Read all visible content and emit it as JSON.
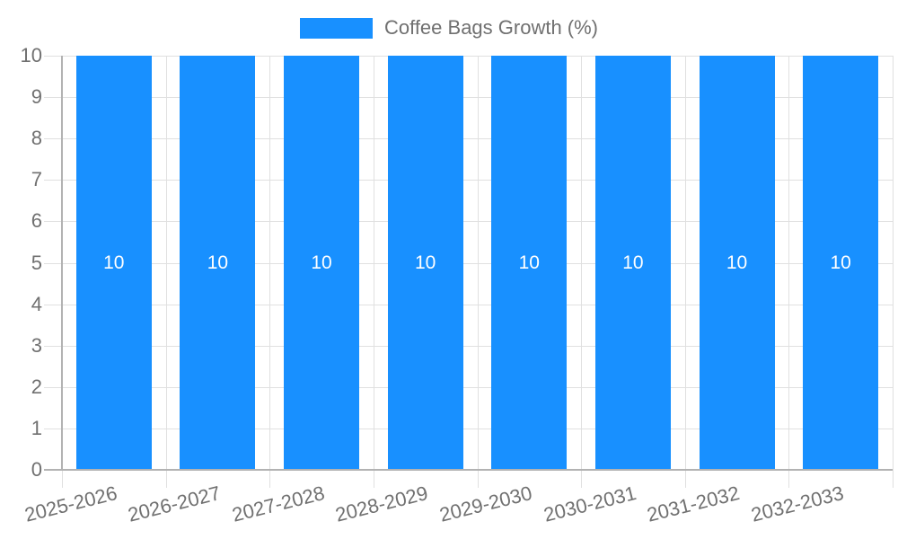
{
  "chart_data": {
    "type": "bar",
    "title": "Coffee Bags Growth (%)",
    "series_name": "Coffee Bags Growth (%)",
    "categories": [
      "2025-2026",
      "2026-2027",
      "2027-2028",
      "2028-2029",
      "2029-2030",
      "2030-2031",
      "2031-2032",
      "2032-2033"
    ],
    "values": [
      10,
      10,
      10,
      10,
      10,
      10,
      10,
      10
    ],
    "bar_labels": [
      "10",
      "10",
      "10",
      "10",
      "10",
      "10",
      "10",
      "10"
    ],
    "xlabel": "",
    "ylabel": "",
    "ylim": [
      0,
      10
    ],
    "ytick_step": 1,
    "yticks": [
      "0",
      "1",
      "2",
      "3",
      "4",
      "5",
      "6",
      "7",
      "8",
      "9",
      "10"
    ],
    "grid": true,
    "legend_position": "top-center",
    "x_label_rotation_deg": -14,
    "colors": {
      "bar": "#1890ff",
      "bar_label": "#ffffff",
      "axis_text": "#707070",
      "grid": "#e0e0e0",
      "axis_line": "#b2b2b2",
      "background": "#ffffff"
    }
  }
}
